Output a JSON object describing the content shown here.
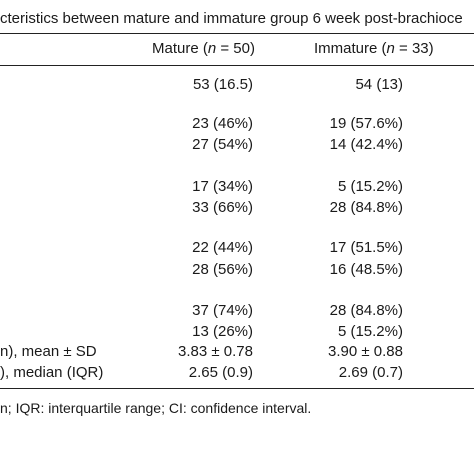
{
  "title": "cteristics between mature and immature group 6 week post-brachioce",
  "columns": [
    {
      "prefix": "Mature (",
      "n": "n",
      "suffix": " = 50)"
    },
    {
      "prefix": "Immature (",
      "n": "n",
      "suffix": " = 33)"
    }
  ],
  "rows": [
    {
      "label": "",
      "mature": "53 (16.5)",
      "immature": "54 (13)"
    },
    {
      "label": "",
      "mature": "23 (46%)",
      "immature": "19 (57.6%)"
    },
    {
      "label": "",
      "mature": "27 (54%)",
      "immature": "14 (42.4%)"
    },
    {
      "label": "",
      "mature": "17 (34%)",
      "immature": "5 (15.2%)"
    },
    {
      "label": "",
      "mature": "33 (66%)",
      "immature": "28 (84.8%)"
    },
    {
      "label": "",
      "mature": "22 (44%)",
      "immature": "17 (51.5%)"
    },
    {
      "label": "",
      "mature": "28 (56%)",
      "immature": "16 (48.5%)"
    },
    {
      "label": "",
      "mature": "37 (74%)",
      "immature": "28 (84.8%)"
    },
    {
      "label": "",
      "mature": "13 (26%)",
      "immature": "5 (15.2%)"
    },
    {
      "label": "n), mean ± SD",
      "mature": "3.83 ± 0.78",
      "immature": "3.90 ± 0.88"
    },
    {
      "label": "), median (IQR)",
      "mature": "2.65 (0.9)",
      "immature": "2.69 (0.7)"
    }
  ],
  "footnote": "n; IQR: interquartile range; CI: confidence interval."
}
